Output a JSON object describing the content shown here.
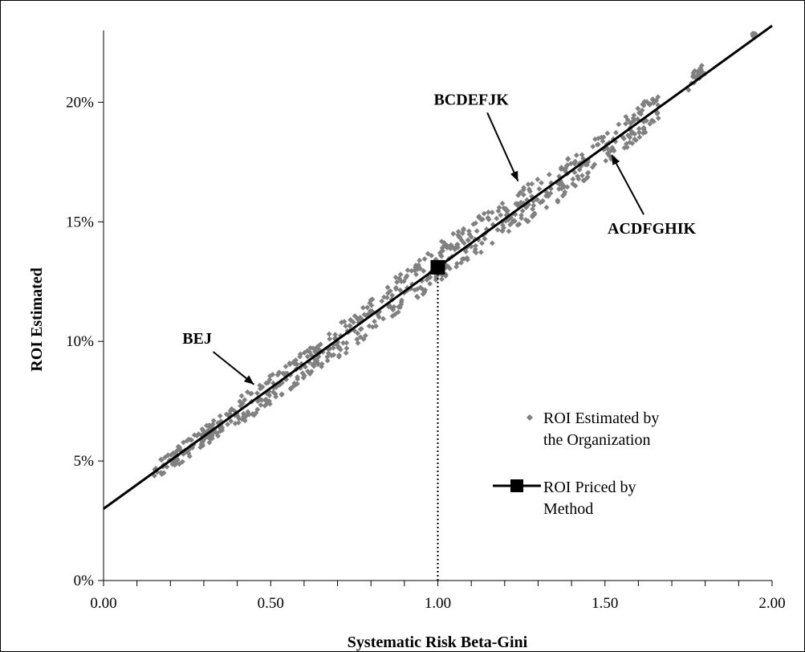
{
  "chart_data": {
    "type": "scatter",
    "title": "",
    "xlabel": "Systematic Risk Beta-Gini",
    "ylabel": "ROI Estimated",
    "xlim": [
      0,
      2
    ],
    "ylim": [
      0,
      0.23
    ],
    "x_ticks": [
      0,
      0.5,
      1,
      1.5,
      2
    ],
    "x_tick_labels": [
      "0.00",
      "0.50",
      "1.00",
      "1.50",
      "2.00"
    ],
    "x_minor_step": 0.1,
    "y_ticks": [
      0,
      0.05,
      0.1,
      0.15,
      0.2
    ],
    "y_tick_labels": [
      "0%",
      "5%",
      "10%",
      "15%",
      "20%"
    ],
    "grid": false,
    "legend_position": "right-middle",
    "series": [
      {
        "name": "ROI Estimated by the Organization",
        "kind": "scatter",
        "marker": "diamond",
        "color": "#808080",
        "cluster_clouds": [
          {
            "x_range": [
              0.15,
              0.4
            ],
            "y_at_x": [
              0.045,
              0.07
            ],
            "spread": 0.004
          },
          {
            "x_range": [
              0.4,
              0.7
            ],
            "y_at_x": [
              0.07,
              0.1
            ],
            "spread": 0.006
          },
          {
            "x_range": [
              0.7,
              1.05
            ],
            "y_at_x": [
              0.1,
              0.138
            ],
            "spread": 0.008
          },
          {
            "x_range": [
              1.05,
              1.4
            ],
            "y_at_x": [
              0.138,
              0.17
            ],
            "spread": 0.008
          },
          {
            "x_range": [
              1.4,
              1.66
            ],
            "y_at_x": [
              0.17,
              0.198
            ],
            "spread": 0.007
          },
          {
            "x_range": [
              1.75,
              1.8
            ],
            "y_at_x": [
              0.208,
              0.215
            ],
            "spread": 0.003
          },
          {
            "x_range": [
              1.94,
              1.95
            ],
            "y_at_x": [
              0.228,
              0.229
            ],
            "spread": 0.001
          }
        ]
      },
      {
        "name": "ROI Priced by Method",
        "kind": "line",
        "color": "#000000",
        "x": [
          0,
          2
        ],
        "y": [
          0.03,
          0.232
        ],
        "highlight_point": {
          "x": 1.0,
          "y": 0.131
        }
      }
    ],
    "reference_line": {
      "style": "dotted",
      "x": 1.0,
      "y_from": 0,
      "y_to": 0.131
    },
    "annotations": [
      {
        "text": "BEJ",
        "label_x": 0.28,
        "label_y": 0.099,
        "arrow_to": [
          0.45,
          0.082
        ]
      },
      {
        "text": "BCDEFJK",
        "label_x": 1.1,
        "label_y": 0.199,
        "arrow_to": [
          1.24,
          0.167
        ]
      },
      {
        "text": "ACDFGHIK",
        "label_x": 1.64,
        "label_y": 0.145,
        "arrow_to": [
          1.52,
          0.178
        ]
      }
    ],
    "legend": [
      {
        "symbol": "diamond",
        "lines": [
          "ROI Estimated by",
          "the Organization"
        ]
      },
      {
        "symbol": "line-square",
        "lines": [
          "ROI Priced by",
          "Method"
        ]
      }
    ]
  }
}
